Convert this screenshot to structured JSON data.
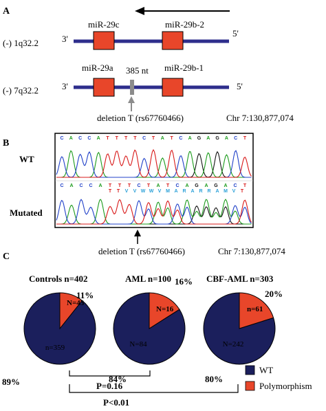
{
  "panel_a": {
    "label": "A",
    "locus1": {
      "name": "(-) 1q32.2",
      "end3": "3'",
      "end5": "5'",
      "genes": [
        "miR-29c",
        "miR-29b-2"
      ]
    },
    "locus2": {
      "name": "(-) 7q32.2",
      "end3": "3'",
      "end5": "5'",
      "genes": [
        "miR-29a",
        "miR-29b-1"
      ],
      "gap_label": "385 nt"
    },
    "deletion_label": "deletion T (rs67760466)",
    "chr_label": "Chr 7:130,877,074",
    "colors": {
      "line": "#2e2e8c",
      "gene": "#e8462a",
      "marker": "#8c8c8c"
    }
  },
  "panel_b": {
    "label": "B",
    "wt_label": "WT",
    "mut_label": "Mutated",
    "wt_bases": [
      "C",
      "A",
      "C",
      "C",
      "A",
      "T",
      "T",
      "T",
      "T",
      "C",
      "T",
      "A",
      "T",
      "C",
      "A",
      "G",
      "A",
      "G",
      "A",
      "C",
      "T"
    ],
    "mut_bases": [
      "C",
      "A",
      "C",
      "C",
      "A",
      "T",
      "T",
      "T",
      "C",
      "T",
      "A",
      "T",
      "C",
      "A",
      "G",
      "A",
      "G",
      "A",
      "C",
      "T"
    ],
    "mut_overlay": [
      "T",
      "T",
      "V",
      "V",
      "W",
      "W",
      "V",
      "M",
      "A",
      "R",
      "A",
      "R",
      "R",
      "A",
      "M",
      "V",
      "T"
    ],
    "deletion_label": "deletion T (rs67760466)",
    "chr_label": "Chr 7:130,877,074",
    "colors": {
      "A": "#1a9a1a",
      "C": "#2040c8",
      "G": "#111111",
      "T": "#d81818",
      "N": "#2aa0d8"
    }
  },
  "panel_c": {
    "label": "C",
    "chart_data": {
      "type": "pie",
      "charts": [
        {
          "title": "Controls n=402",
          "slices": [
            {
              "label": "n=359",
              "value": 359,
              "percent": "89%"
            },
            {
              "label": "N=43",
              "value": 43,
              "percent": "11%"
            }
          ]
        },
        {
          "title": "AML n=100",
          "slices": [
            {
              "label": "N=84",
              "value": 84,
              "percent": "84%"
            },
            {
              "label": "N=16",
              "value": 16,
              "percent": "16%"
            }
          ]
        },
        {
          "title": "CBF-AML n=303",
          "slices": [
            {
              "label": "N=242",
              "value": 242,
              "percent": "80%"
            },
            {
              "label": "n=61",
              "value": 61,
              "percent": "20%"
            }
          ]
        }
      ],
      "legend": [
        {
          "name": "WT",
          "color": "#1b1f5c"
        },
        {
          "name": "Polymorphism",
          "color": "#e8462a"
        }
      ],
      "legend_position": "bottom-right"
    },
    "p_values": [
      "P=0.16",
      "P<0.01"
    ]
  }
}
